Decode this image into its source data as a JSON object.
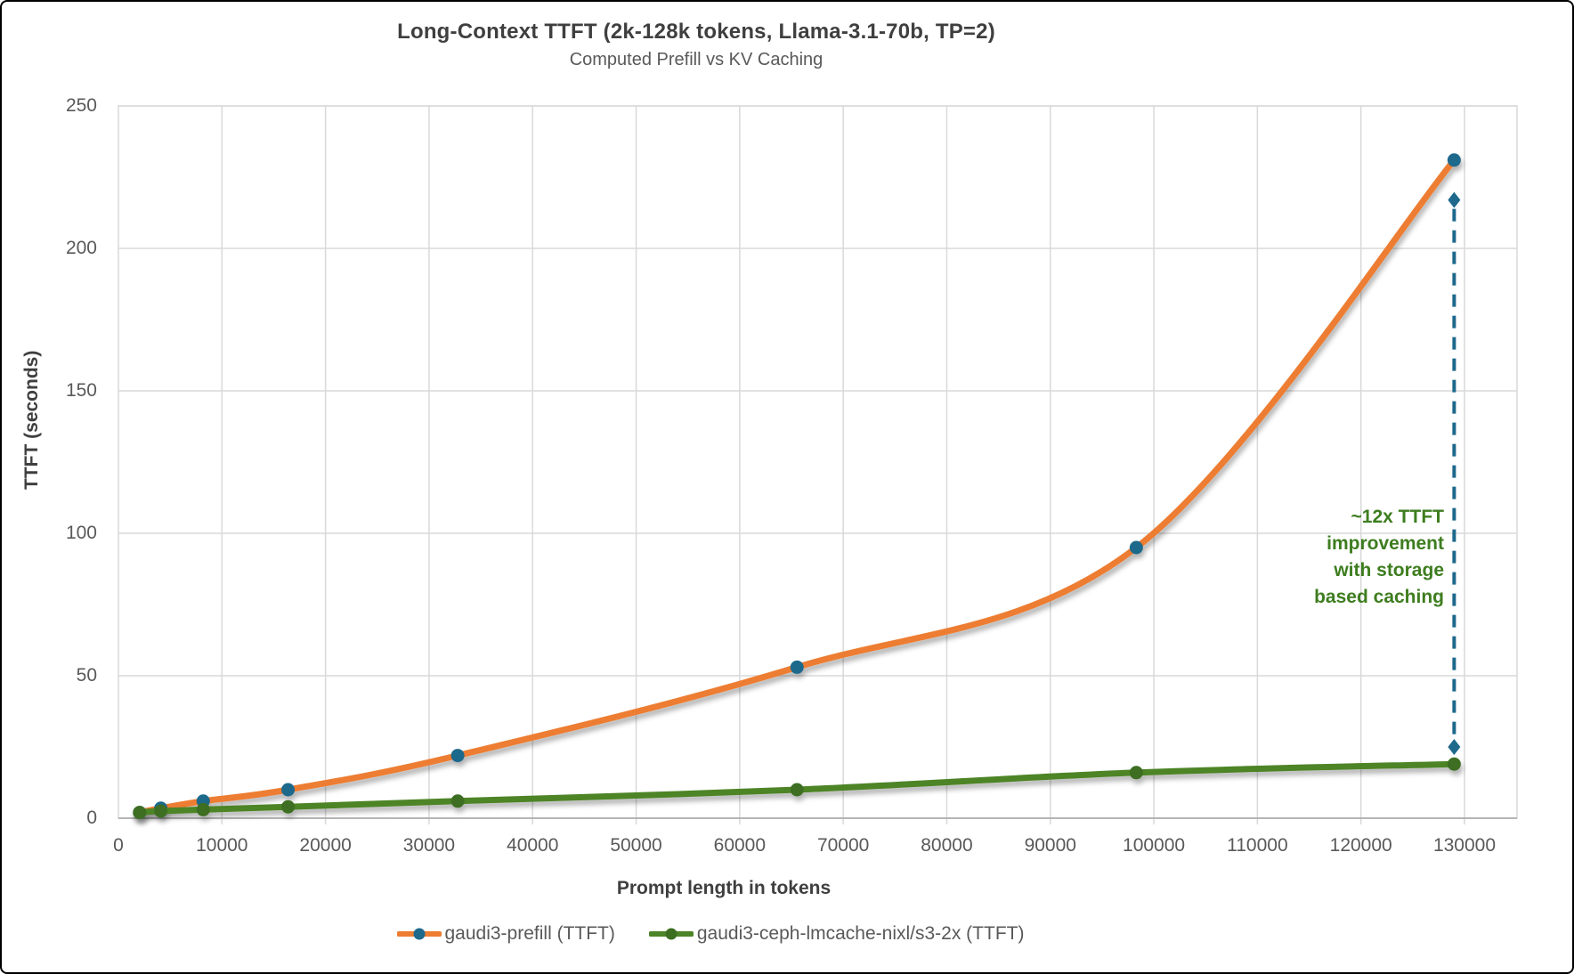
{
  "chart_data": {
    "type": "line",
    "title": "Long-Context TTFT (2k-128k tokens, Llama-3.1-70b, TP=2)",
    "subtitle": "Computed Prefill vs KV Caching",
    "xlabel": "Prompt length in tokens",
    "ylabel": "TTFT (seconds)",
    "xlim": [
      0,
      135000
    ],
    "ylim": [
      0,
      250
    ],
    "x_ticks": [
      0,
      10000,
      20000,
      30000,
      40000,
      50000,
      60000,
      70000,
      80000,
      90000,
      100000,
      110000,
      120000,
      130000
    ],
    "y_ticks": [
      0,
      50,
      100,
      150,
      200,
      250
    ],
    "grid": true,
    "legend_position": "bottom",
    "series": [
      {
        "name": "gaudi3-prefill (TTFT)",
        "line_color": "#ED7D31",
        "marker_color": "#1E698C",
        "smooth": true,
        "x": [
          2048,
          4096,
          8192,
          16384,
          32768,
          65536,
          98304,
          129000
        ],
        "values": [
          2,
          3.5,
          6,
          10,
          22,
          53,
          95,
          231
        ]
      },
      {
        "name": "gaudi3-ceph-lmcache-nixl/s3-2x (TTFT)",
        "line_color": "#4E8428",
        "marker_color": "#3C6E21",
        "smooth": true,
        "x": [
          2048,
          4096,
          8192,
          16384,
          32768,
          65536,
          98304,
          129000
        ],
        "values": [
          2,
          2.5,
          3,
          4,
          6,
          10,
          16,
          19
        ]
      }
    ],
    "annotation": {
      "lines": [
        "~12x TTFT",
        "improvement",
        "with storage",
        "based caching"
      ],
      "color": "#3E7D1F"
    },
    "arrow": {
      "x": 129000,
      "y_top": 217,
      "y_bottom": 25,
      "color": "#1E698C"
    },
    "colors": {
      "gridline": "#D9D9D9",
      "axis_line": "#A6A6A6",
      "tick_text": "#595959",
      "title_text": "#3F3F3F"
    }
  }
}
